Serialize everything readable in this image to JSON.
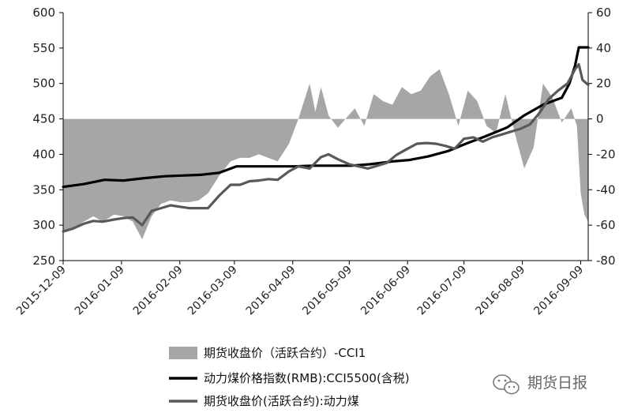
{
  "chart_data": {
    "type": "line",
    "x_type": "date",
    "xlim": [
      "2015-12-09",
      "2016-09-13"
    ],
    "x_ticks": [
      "2015-12-09",
      "2016-01-09",
      "2016-02-09",
      "2016-03-09",
      "2016-04-09",
      "2016-05-09",
      "2016-06-09",
      "2016-07-09",
      "2016-08-09",
      "2016-09-09"
    ],
    "y_left": {
      "lim": [
        250,
        600
      ],
      "ticks": [
        250,
        300,
        350,
        400,
        450,
        500,
        550,
        600
      ]
    },
    "y_right": {
      "lim": [
        -80,
        60
      ],
      "ticks": [
        -80,
        -60,
        -40,
        -20,
        0,
        20,
        40,
        60
      ]
    },
    "grid": false,
    "legend_position": "bottom",
    "series": [
      {
        "name": "期货收盘价（活跃合约）-CCI1",
        "type": "area",
        "axis": "right",
        "color": "#a6a6a6",
        "x": [
          "2015-12-09",
          "2015-12-14",
          "2015-12-20",
          "2015-12-25",
          "2015-12-30",
          "2016-01-05",
          "2016-01-10",
          "2016-01-15",
          "2016-01-20",
          "2016-01-25",
          "2016-01-30",
          "2016-02-04",
          "2016-02-09",
          "2016-02-14",
          "2016-02-19",
          "2016-02-24",
          "2016-03-01",
          "2016-03-07",
          "2016-03-12",
          "2016-03-17",
          "2016-03-22",
          "2016-03-27",
          "2016-04-01",
          "2016-04-07",
          "2016-04-12",
          "2016-04-15",
          "2016-04-18",
          "2016-04-21",
          "2016-04-24",
          "2016-04-28",
          "2016-05-03",
          "2016-05-07",
          "2016-05-12",
          "2016-05-17",
          "2016-05-22",
          "2016-05-27",
          "2016-06-01",
          "2016-06-06",
          "2016-06-11",
          "2016-06-16",
          "2016-06-21",
          "2016-06-26",
          "2016-07-01",
          "2016-07-06",
          "2016-07-11",
          "2016-07-16",
          "2016-07-21",
          "2016-07-26",
          "2016-07-31",
          "2016-08-05",
          "2016-08-10",
          "2016-08-15",
          "2016-08-20",
          "2016-08-25",
          "2016-08-30",
          "2016-09-04",
          "2016-09-07",
          "2016-09-09",
          "2016-09-11",
          "2016-09-13"
        ],
        "values": [
          -64,
          -62,
          -58,
          -55,
          -58,
          -54,
          -55,
          -58,
          -68,
          -55,
          -48,
          -46,
          -47,
          -47,
          -46,
          -42,
          -32,
          -24,
          -22,
          -22,
          -20,
          -22,
          -24,
          -14,
          0,
          10,
          20,
          4,
          18,
          2,
          -5,
          0,
          6,
          -4,
          14,
          10,
          8,
          18,
          14,
          16,
          24,
          28,
          14,
          -4,
          16,
          10,
          -4,
          -8,
          14,
          -8,
          -28,
          -16,
          20,
          12,
          -2,
          6,
          -4,
          -42,
          -54,
          -58
        ]
      },
      {
        "name": "动力煤价格指数(RMB):CCI5500(含税)",
        "axis": "left",
        "color": "#000000",
        "x": [
          "2015-12-09",
          "2015-12-20",
          "2015-12-31",
          "2016-01-10",
          "2016-01-20",
          "2016-02-01",
          "2016-02-10",
          "2016-02-20",
          "2016-03-01",
          "2016-03-10",
          "2016-03-20",
          "2016-04-01",
          "2016-04-10",
          "2016-04-20",
          "2016-05-01",
          "2016-05-10",
          "2016-05-20",
          "2016-06-01",
          "2016-06-10",
          "2016-06-20",
          "2016-07-01",
          "2016-07-10",
          "2016-07-20",
          "2016-08-01",
          "2016-08-10",
          "2016-08-20",
          "2016-08-30",
          "2016-09-03",
          "2016-09-06",
          "2016-09-08",
          "2016-09-13"
        ],
        "values": [
          354,
          358,
          364,
          363,
          366,
          369,
          370,
          371,
          374,
          383,
          383,
          383,
          383,
          384,
          384,
          384,
          386,
          390,
          392,
          397,
          405,
          415,
          425,
          438,
          455,
          470,
          480,
          500,
          525,
          551,
          551
        ]
      },
      {
        "name": "期货收盘价(活跃合约):动力煤",
        "axis": "left",
        "color": "#595959",
        "x": [
          "2015-12-09",
          "2015-12-14",
          "2015-12-20",
          "2015-12-25",
          "2015-12-30",
          "2016-01-05",
          "2016-01-10",
          "2016-01-15",
          "2016-01-20",
          "2016-01-25",
          "2016-01-30",
          "2016-02-04",
          "2016-02-09",
          "2016-02-14",
          "2016-02-19",
          "2016-02-24",
          "2016-03-01",
          "2016-03-07",
          "2016-03-12",
          "2016-03-17",
          "2016-03-22",
          "2016-03-27",
          "2016-04-01",
          "2016-04-07",
          "2016-04-12",
          "2016-04-18",
          "2016-04-24",
          "2016-04-28",
          "2016-05-03",
          "2016-05-09",
          "2016-05-14",
          "2016-05-19",
          "2016-05-24",
          "2016-05-29",
          "2016-06-03",
          "2016-06-09",
          "2016-06-14",
          "2016-06-19",
          "2016-06-24",
          "2016-06-29",
          "2016-07-04",
          "2016-07-09",
          "2016-07-14",
          "2016-07-19",
          "2016-07-24",
          "2016-07-29",
          "2016-08-03",
          "2016-08-08",
          "2016-08-13",
          "2016-08-18",
          "2016-08-23",
          "2016-08-28",
          "2016-09-02",
          "2016-09-06",
          "2016-09-08",
          "2016-09-10",
          "2016-09-13"
        ],
        "values": [
          291,
          295,
          302,
          306,
          305,
          308,
          310,
          311,
          300,
          320,
          324,
          328,
          326,
          324,
          324,
          324,
          342,
          357,
          357,
          362,
          363,
          365,
          364,
          376,
          383,
          380,
          396,
          400,
          393,
          386,
          383,
          380,
          384,
          388,
          399,
          408,
          415,
          416,
          415,
          412,
          408,
          422,
          424,
          418,
          424,
          428,
          432,
          436,
          442,
          458,
          478,
          490,
          500,
          520,
          527,
          505,
          498
        ]
      }
    ],
    "watermark": "期货日报"
  }
}
